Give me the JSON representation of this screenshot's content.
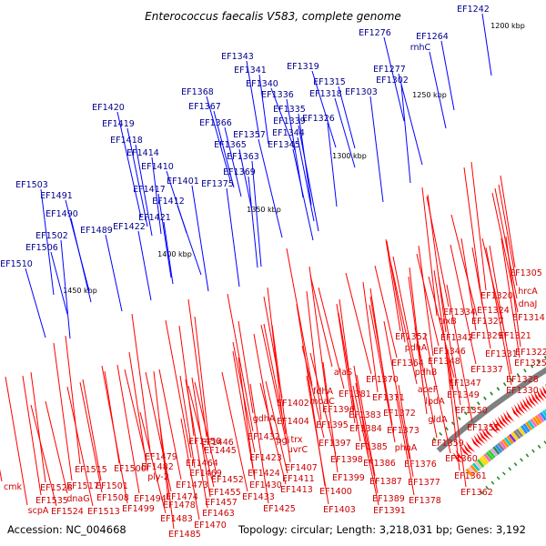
{
  "title": "Enterococcus faecalis V583, complete genome",
  "footer": {
    "accession": "Accession: NC_004668",
    "info": "Topology: circular; Length: 3,218,031 bp; Genes: 3,192"
  },
  "scale_ticks": [
    "1200 kbp",
    "1250 kbp",
    "1300 kbp",
    "1350 kbp",
    "1400 kbp",
    "1450 kbp"
  ],
  "colors": {
    "forward_strand": "#0000ff",
    "reverse_strand": "#ff0000",
    "backbone": "#808080",
    "tick": "#228b22"
  },
  "forward_labels": [
    "EF1242",
    "EF1264",
    "rnhC",
    "EF1276",
    "EF1277",
    "EF1302",
    "EF1303",
    "EF1315",
    "EF1318",
    "EF1319",
    "EF1326",
    "EF1335",
    "EF1336",
    "EF1339",
    "EF1340",
    "EF1341",
    "EF1343",
    "EF1344",
    "EF1345",
    "EF1357",
    "EF1363",
    "EF1365",
    "EF1366",
    "EF1367",
    "EF1368",
    "EF1369",
    "EF1375",
    "EF1401",
    "EF1410",
    "EF1412",
    "EF1414",
    "EF1417",
    "EF1418",
    "EF1419",
    "EF1420",
    "EF1421",
    "EF1422",
    "EF1489",
    "EF1490",
    "EF1491",
    "EF1502",
    "EF1503",
    "EF1506",
    "EF1510"
  ],
  "reverse_labels": [
    "EF1305",
    "hrcA",
    "dnaJ",
    "EF1314",
    "EF1320",
    "EF1324",
    "EF1321",
    "EF1327",
    "EF1322",
    "EF1325",
    "EF1328",
    "EF1330",
    "EF1329",
    "EF1331",
    "EF1334",
    "EF1337",
    "trxB",
    "EF1342",
    "EF1346",
    "EF1347",
    "EF1348",
    "EF1349",
    "EF1350",
    "EF1351",
    "EF1352",
    "pdhA",
    "pdhB",
    "aceF",
    "lpdA",
    "gldA",
    "EF1364",
    "EF1370",
    "EF1371",
    "EF1372",
    "EF1373",
    "EF1376",
    "EF1377",
    "EF1378",
    "EF1359",
    "EF1360",
    "EF1361",
    "EF1362",
    "alaS",
    "EF1381",
    "EF1383",
    "EF1384",
    "EF1385",
    "phnA",
    "EF1386",
    "EF1387",
    "EF1389",
    "EF1391",
    "EF1395",
    "EF1396",
    "EF1397",
    "EF1398",
    "EF1399",
    "EF1400",
    "EF1403",
    "fdhA",
    "moaC",
    "EF1402",
    "trx",
    "uvrC",
    "EF1404",
    "EF1407",
    "EF1411",
    "EF1413",
    "EF1424",
    "EF1425",
    "EF1430",
    "EF1432",
    "gdhA",
    "pgi",
    "EF1423",
    "EF1433",
    "EF1445",
    "EF1446",
    "EF1452",
    "EF1455",
    "EF1456",
    "EF1457",
    "EF1463",
    "EF1464",
    "EF1469",
    "EF1470",
    "EF1473",
    "EF1474",
    "EF1478",
    "EF1479",
    "EF1482",
    "EF1483",
    "EF1485",
    "ply-2",
    "EF1494",
    "EF1499",
    "EF1500",
    "EF1501",
    "EF1508",
    "EF1513",
    "EF1515",
    "EF1517",
    "dnaG",
    "EF1524",
    "EF1528",
    "EF1535",
    "scpA",
    "cmk"
  ]
}
